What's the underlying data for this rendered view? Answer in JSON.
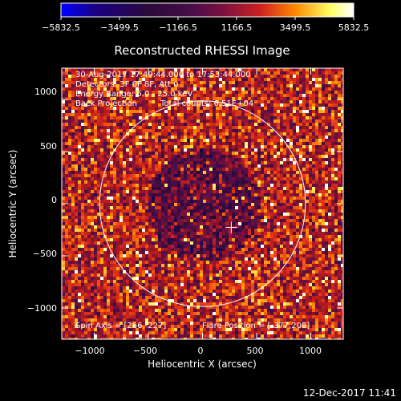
{
  "colorbar": {
    "tick_labels": [
      "−5832.5",
      "−3499.5",
      "−1166.5",
      "1166.5",
      "3499.5",
      "5832.5"
    ],
    "tick_values": [
      -5832.5,
      -3499.5,
      -1166.5,
      1166.5,
      3499.5,
      5832.5
    ],
    "range": [
      -5832.5,
      5832.5
    ],
    "colors": [
      "#0000ff",
      "#1a0080",
      "#2a0a3a",
      "#5a0f5a",
      "#cc2020",
      "#ff8800",
      "#ffff66",
      "#ffffff"
    ]
  },
  "plot": {
    "title": "Reconstructed RHESSI Image",
    "xlabel": "Heliocentric X (arcsec)",
    "ylabel": "Heliocentric Y (arcsec)",
    "x_ticks": [
      "−1000",
      "−500",
      "0",
      "500",
      "1000"
    ],
    "y_ticks": [
      "1000",
      "500",
      "0",
      "−500",
      "−1000"
    ],
    "annotations": {
      "line1": "30-Aug-2017 17:49:44.000 to 17:53:44.000",
      "line2": "Detectors: 3F 6F 8F, Att 0",
      "line3": "Energy Range: 6.0 - 25.0 keV",
      "line4_a": "Back Projection",
      "line4_b": "Total counts: 6.51E+04",
      "spin_axis": "Spin Axis = [266,-227]",
      "flare_position": "Flare Position = [-377,208]"
    },
    "timestamp": "12-Dec-2017 11:41"
  },
  "chart_data": {
    "type": "heatmap",
    "title": "Reconstructed RHESSI Image",
    "xlabel": "Heliocentric X (arcsec)",
    "ylabel": "Heliocentric Y (arcsec)",
    "xlim": [
      -1300,
      1300
    ],
    "ylim": [
      -1300,
      1300
    ],
    "x_ticks": [
      -1000,
      -500,
      0,
      500,
      1000
    ],
    "y_ticks": [
      -1000,
      -500,
      0,
      500,
      1000
    ],
    "solar_limb_radius_arcsec": 950,
    "spin_axis_marker": [
      266,
      -227
    ],
    "color_range": [
      -5832.5,
      5832.5
    ]
  }
}
